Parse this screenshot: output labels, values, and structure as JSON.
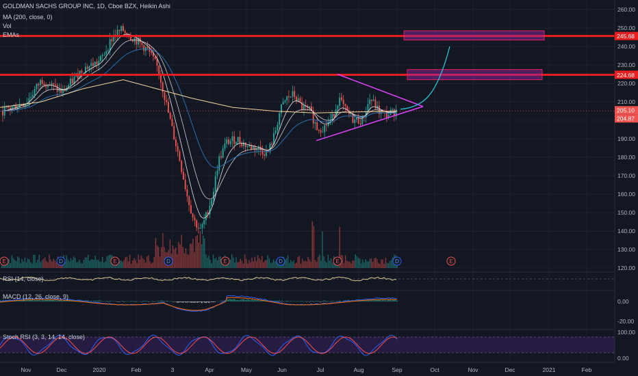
{
  "header": {
    "title": "GOLDMAN SACHS GROUP INC, 1D, Cboe BZX, Heikin Ashi",
    "indicators": [
      "MA (200, close, 0)",
      "Vol",
      "EMAs"
    ]
  },
  "panes": {
    "rsi_title": "RSI (14, close)",
    "macd_title": "MACD (12, 26, close, 9)",
    "stoch_title": "Stoch RSI (3, 3, 14, 14, close)"
  },
  "colors": {
    "background": "#131722",
    "up": "#26a69a",
    "down": "#ef5350",
    "resistance": "#e91e1e",
    "triangle": "#e040fb",
    "projection": "#26c6da",
    "ma200": "#f5d8a0",
    "stoch_band": "#2a1c45"
  },
  "chart_data": {
    "type": "candlestick",
    "title": "GOLDMAN SACHS GROUP INC, 1D, Cboe BZX, Heikin Ashi",
    "x_ticks": [
      "Nov",
      "Dec",
      "2020",
      "Feb",
      "3",
      "Apr",
      "May",
      "Jun",
      "Jul",
      "Aug",
      "Sep",
      "Oct",
      "Nov",
      "Dec",
      "2021",
      "Feb"
    ],
    "y_ticks": [
      120,
      130,
      140,
      150,
      160,
      170,
      180,
      190,
      200,
      210,
      220,
      230,
      240,
      250,
      260
    ],
    "ylim": [
      116,
      263
    ],
    "price_path": [
      [
        "Nov",
        205
      ],
      [
        "Dec",
        222
      ],
      [
        "2020",
        235
      ],
      [
        "Feb",
        243
      ],
      [
        "3",
        200
      ],
      [
        "Apr",
        145
      ],
      [
        "May",
        188
      ],
      [
        "Jun",
        215
      ],
      [
        "Jul",
        196
      ],
      [
        "Aug",
        202
      ],
      [
        "Sep",
        205
      ]
    ],
    "horizontal_levels": [
      {
        "value": 245.68,
        "label": "245.68"
      },
      {
        "value": 224.68,
        "label": "224.68"
      }
    ],
    "price_labels": [
      {
        "value": 205.1,
        "label": "205.10"
      },
      {
        "value": 204.87,
        "label": "204.87"
      }
    ],
    "target_zones": [
      {
        "from": 243.5,
        "to": 248.5
      },
      {
        "from": 222,
        "to": 227.5
      }
    ],
    "triangle": {
      "upper": [
        [
          "Jul",
          225
        ],
        [
          "Sep",
          207.5
        ]
      ],
      "lower": [
        [
          "Jul",
          189
        ],
        [
          "Sep",
          207.5
        ]
      ]
    },
    "event_markers": [
      {
        "x": "Nov",
        "label": "E"
      },
      {
        "x": "Dec",
        "label": "D"
      },
      {
        "x": "2020",
        "label": "E"
      },
      {
        "x": "3",
        "label": "D"
      },
      {
        "x": "Apr",
        "label": "E"
      },
      {
        "x": "Jun",
        "label": "D"
      },
      {
        "x": "Jul",
        "label": "E"
      },
      {
        "x": "Sep",
        "label": "D"
      },
      {
        "x": "Oct",
        "label": "E"
      }
    ],
    "macd_ticks": [
      0.0,
      -20.0
    ],
    "stoch_ticks": [
      100.0,
      0.0
    ],
    "grid": true
  }
}
